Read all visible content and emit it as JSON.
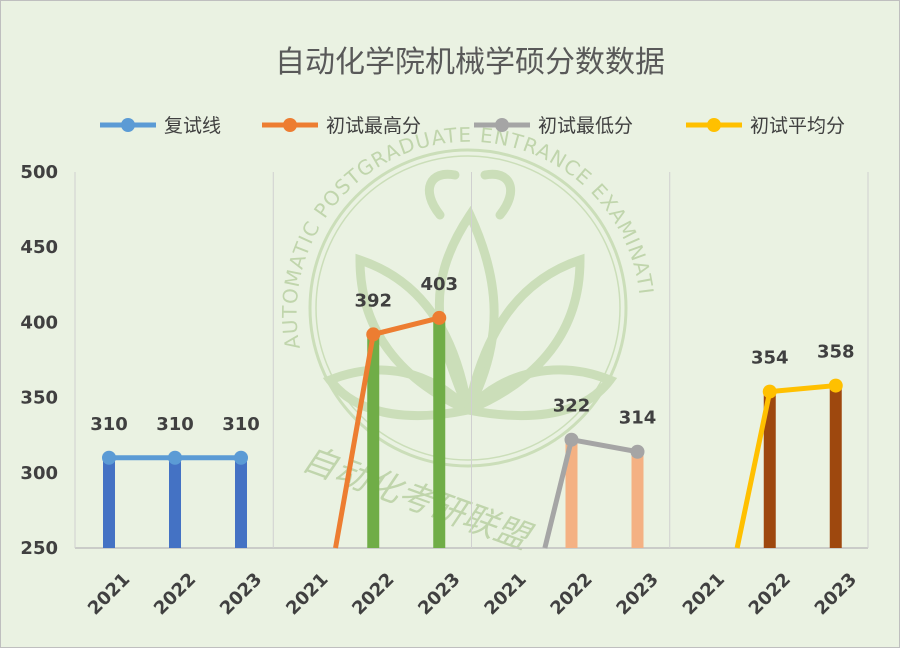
{
  "chart_data": {
    "type": "bar+line",
    "title": "自动化学院机械学硕分数数据",
    "ylim": [
      250,
      500
    ],
    "yticks": [
      250,
      300,
      350,
      400,
      450,
      500
    ],
    "grid": "vertical separators only",
    "legend_position": "top",
    "groups": [
      {
        "series": "复试线",
        "color": "#5b9bd5",
        "bar_color": "#4472c4",
        "x": [
          "2021",
          "2022",
          "2023"
        ],
        "values": [
          310,
          310,
          310
        ],
        "labels": [
          "310",
          "310",
          "310"
        ]
      },
      {
        "series": "初试最高分",
        "color": "#ed7d31",
        "bar_color": "#70ad47",
        "x": [
          "2021",
          "2022",
          "2023"
        ],
        "values": [
          null,
          392,
          403
        ],
        "labels": [
          "",
          "392",
          "403"
        ]
      },
      {
        "series": "初试最低分",
        "color": "#a5a5a5",
        "bar_color": "#f4b183",
        "x": [
          "2021",
          "2022",
          "2023"
        ],
        "values": [
          null,
          322,
          314
        ],
        "labels": [
          "",
          "322",
          "314"
        ]
      },
      {
        "series": "初试平均分",
        "color": "#ffc000",
        "bar_color": "#9e480e",
        "x": [
          "2021",
          "2022",
          "2023"
        ],
        "values": [
          null,
          354,
          358
        ],
        "labels": [
          "",
          "354",
          "358"
        ]
      }
    ]
  },
  "watermark": {
    "arc_text": "AUTOMATIC POSTGRADUATE ENTRANCE EXAMINATION ALLIANCE",
    "cn_text": "自动化考研联盟"
  }
}
